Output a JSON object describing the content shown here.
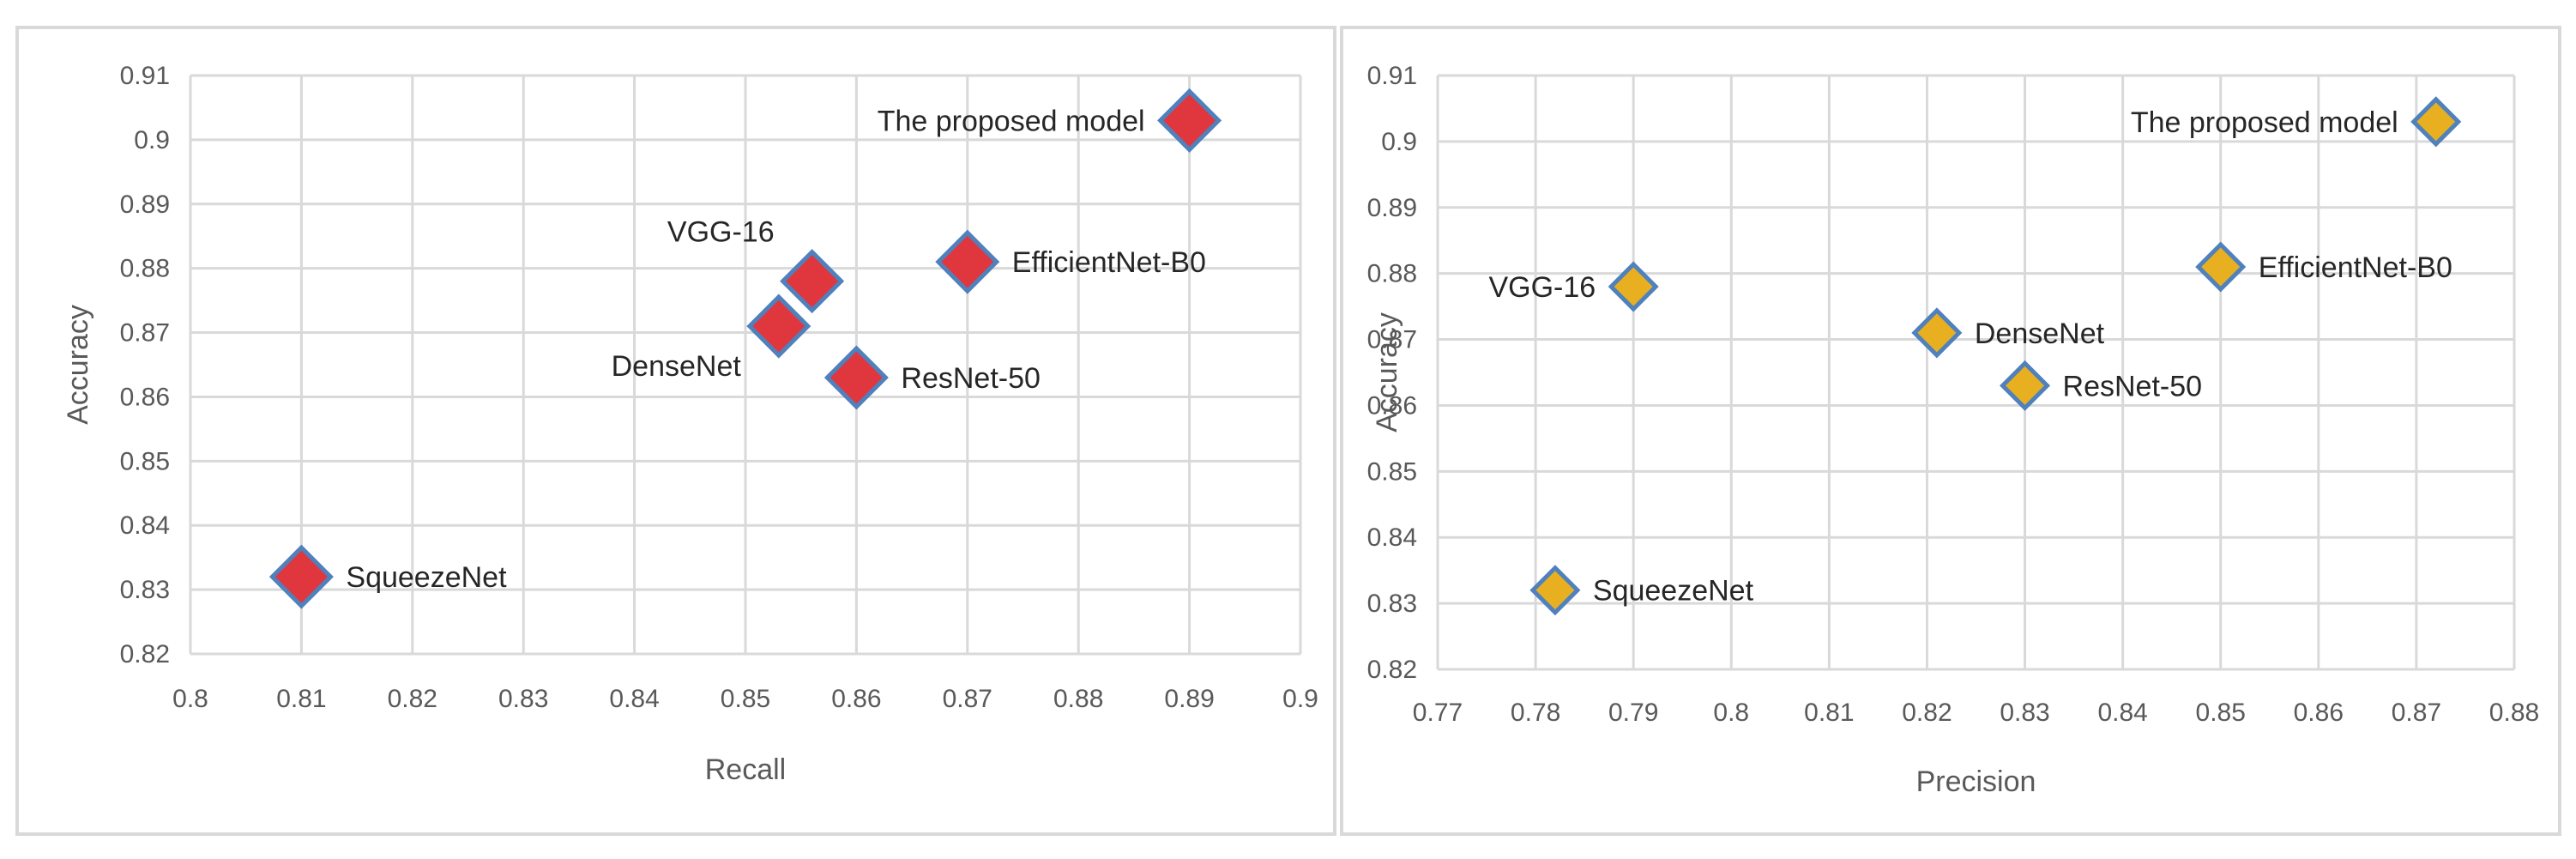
{
  "chart_data": [
    {
      "type": "scatter",
      "title": "",
      "xlabel": "Recall",
      "ylabel": "Accuracy",
      "xlim": [
        0.8,
        0.9
      ],
      "ylim": [
        0.82,
        0.91
      ],
      "x_ticks": [
        "0.8",
        "0.81",
        "0.82",
        "0.83",
        "0.84",
        "0.85",
        "0.86",
        "0.87",
        "0.88",
        "0.89",
        "0.9"
      ],
      "y_ticks": [
        "0.82",
        "0.83",
        "0.84",
        "0.85",
        "0.86",
        "0.87",
        "0.88",
        "0.89",
        "0.9",
        "0.91"
      ],
      "grid": true,
      "marker": "diamond",
      "marker_color": "#e0373f",
      "marker_edge": "#4f81bd",
      "points": [
        {
          "label": "SqueezeNet",
          "x": 0.81,
          "y": 0.832,
          "label_pos": "right"
        },
        {
          "label": "DenseNet",
          "x": 0.853,
          "y": 0.871,
          "label_pos": "below-left"
        },
        {
          "label": "VGG-16",
          "x": 0.856,
          "y": 0.878,
          "label_pos": "above-left"
        },
        {
          "label": "ResNet-50",
          "x": 0.86,
          "y": 0.863,
          "label_pos": "right"
        },
        {
          "label": "EfficientNet-B0",
          "x": 0.87,
          "y": 0.881,
          "label_pos": "right"
        },
        {
          "label": "The proposed model",
          "x": 0.89,
          "y": 0.903,
          "label_pos": "left"
        }
      ]
    },
    {
      "type": "scatter",
      "title": "",
      "xlabel": "Precision",
      "ylabel": "Accuracy",
      "xlim": [
        0.77,
        0.88
      ],
      "ylim": [
        0.82,
        0.91
      ],
      "x_ticks": [
        "0.77",
        "0.78",
        "0.79",
        "0.8",
        "0.81",
        "0.82",
        "0.83",
        "0.84",
        "0.85",
        "0.86",
        "0.87",
        "0.88"
      ],
      "y_ticks": [
        "0.82",
        "0.83",
        "0.84",
        "0.85",
        "0.86",
        "0.87",
        "0.88",
        "0.89",
        "0.9",
        "0.91"
      ],
      "grid": true,
      "marker": "diamond",
      "marker_color": "#e8b020",
      "marker_edge": "#4f81bd",
      "points": [
        {
          "label": "SqueezeNet",
          "x": 0.782,
          "y": 0.832,
          "label_pos": "right"
        },
        {
          "label": "VGG-16",
          "x": 0.79,
          "y": 0.878,
          "label_pos": "left"
        },
        {
          "label": "DenseNet",
          "x": 0.821,
          "y": 0.871,
          "label_pos": "right"
        },
        {
          "label": "ResNet-50",
          "x": 0.83,
          "y": 0.863,
          "label_pos": "right"
        },
        {
          "label": "EfficientNet-B0",
          "x": 0.85,
          "y": 0.881,
          "label_pos": "right"
        },
        {
          "label": "The proposed model",
          "x": 0.872,
          "y": 0.903,
          "label_pos": "left"
        }
      ]
    }
  ]
}
